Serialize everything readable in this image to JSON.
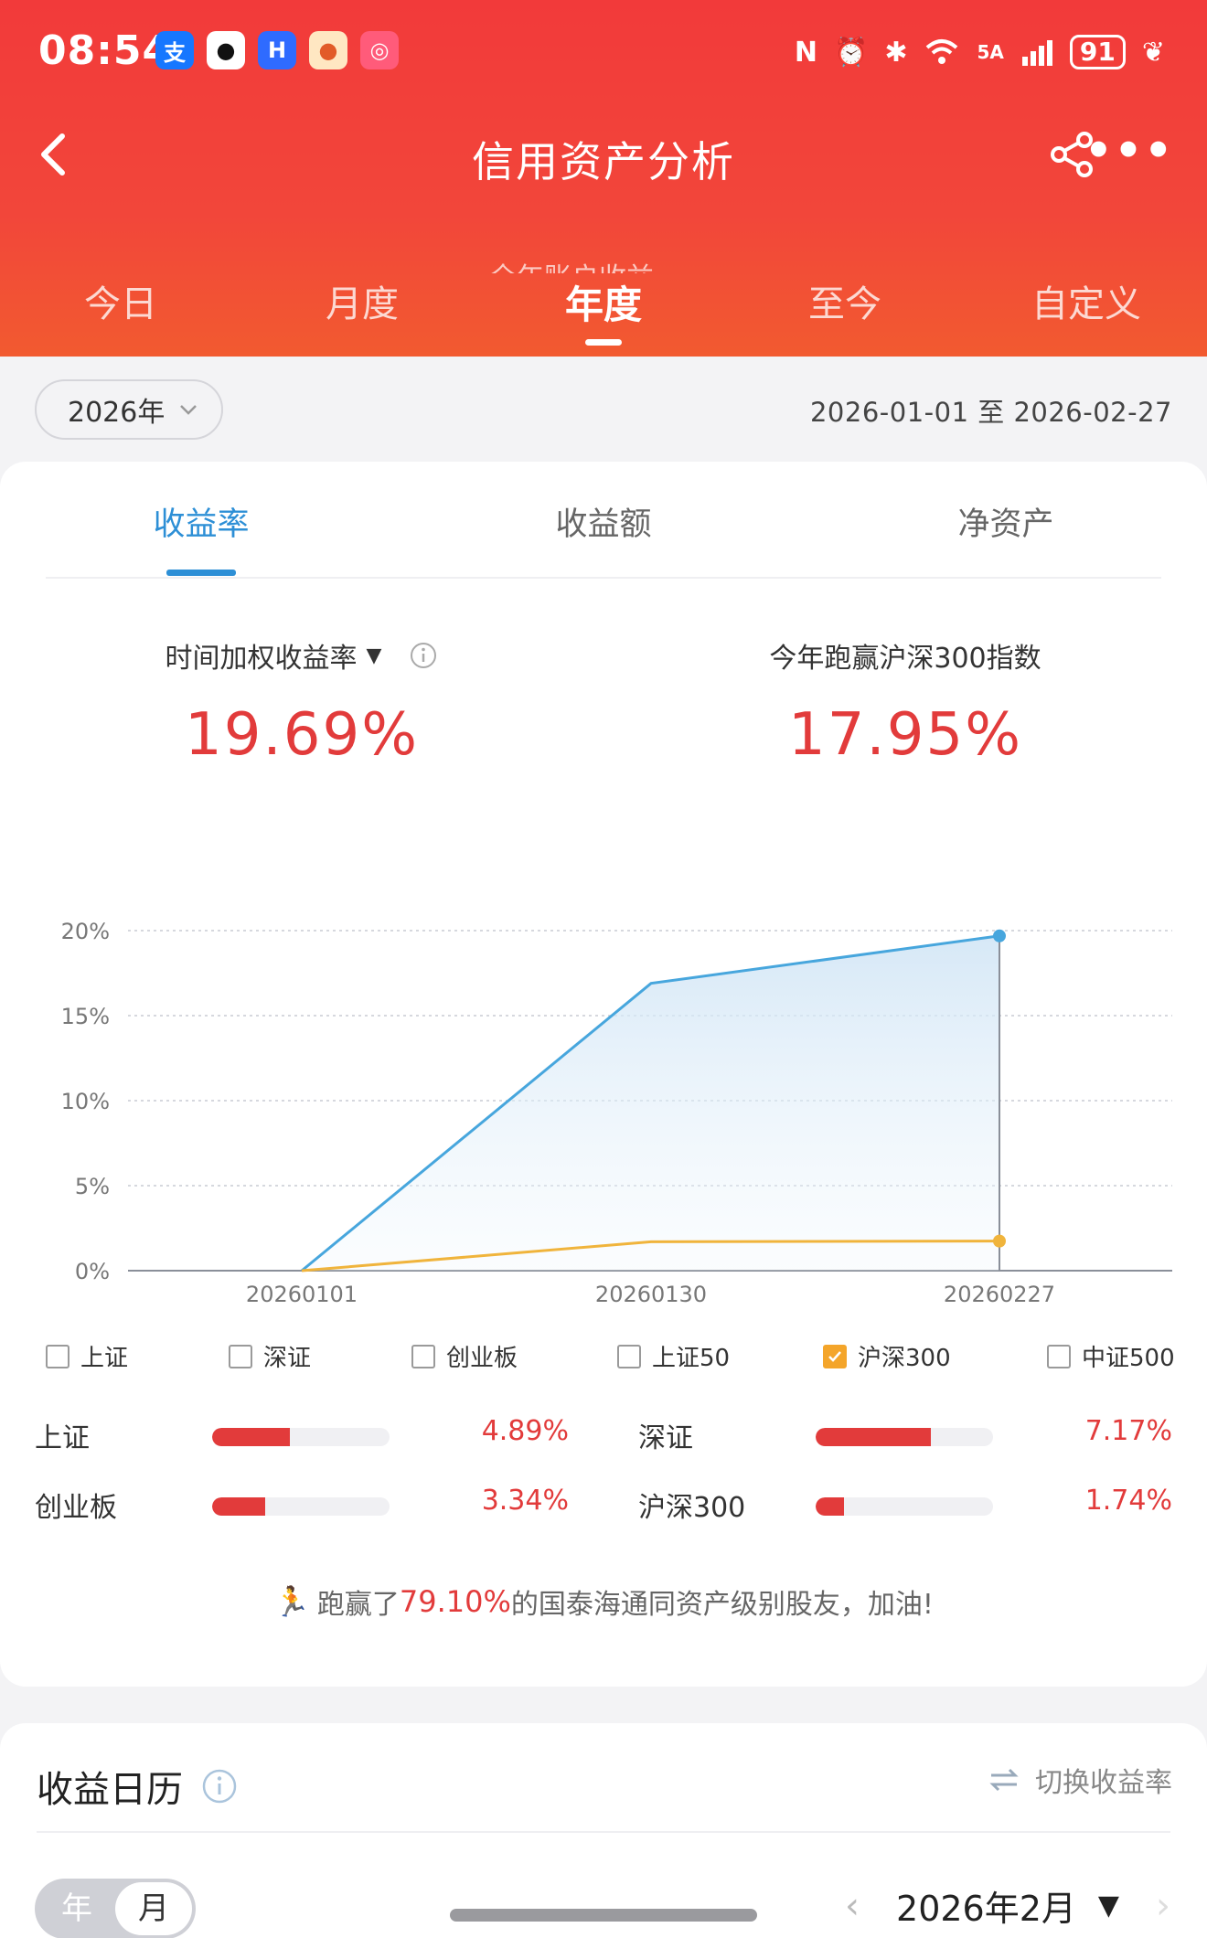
{
  "status_bar": {
    "time": "08:54",
    "battery": "91",
    "network": "5A",
    "icons": [
      "alipay-icon",
      "qq-icon",
      "hbuilder-icon",
      "dog-app-icon",
      "mall-app-icon"
    ]
  },
  "nav": {
    "title": "信用资产分析",
    "peek_text": "全年账户收益"
  },
  "period_tabs": [
    "今日",
    "月度",
    "年度",
    "至今",
    "自定义"
  ],
  "period_active": 2,
  "year_selector": {
    "label": "2026年"
  },
  "date_range": "2026-01-01 至 2026-02-27",
  "metric_tabs": [
    "收益率",
    "收益额",
    "净资产"
  ],
  "metric_active": 0,
  "kpis": {
    "left_label": "时间加权收益率",
    "left_value": "19.69%",
    "right_label": "今年跑赢沪深300指数",
    "right_value": "17.95%"
  },
  "chart_data": {
    "type": "line",
    "x": [
      "20260101",
      "20260130",
      "20260227"
    ],
    "y_ticks": [
      "20%",
      "15%",
      "10%",
      "5%",
      "0%"
    ],
    "ylim": [
      0,
      20
    ],
    "series": [
      {
        "values": [
          0,
          16.9,
          19.69
        ],
        "color": "#47a6dd",
        "fill": true
      },
      {
        "values": [
          0,
          1.7,
          1.74
        ],
        "color": "#f0b43c",
        "fill": false
      }
    ]
  },
  "legend": [
    {
      "label": "上证",
      "checked": false
    },
    {
      "label": "深证",
      "checked": false
    },
    {
      "label": "创业板",
      "checked": false
    },
    {
      "label": "上证50",
      "checked": false
    },
    {
      "label": "沪深300",
      "checked": true
    },
    {
      "label": "中证500",
      "checked": false
    }
  ],
  "index_stats": [
    {
      "name": "上证",
      "value": "4.89%",
      "fraction": 0.44
    },
    {
      "name": "深证",
      "value": "7.17%",
      "fraction": 0.65
    },
    {
      "name": "创业板",
      "value": "3.34%",
      "fraction": 0.3
    },
    {
      "name": "沪深300",
      "value": "1.74%",
      "fraction": 0.16
    }
  ],
  "beat": {
    "prefix": "跑赢了",
    "pct": "79.10%",
    "suffix": "的国泰海通同资产级别股友，加油!"
  },
  "calendar": {
    "title": "收益日历",
    "switch_label": "切换收益率",
    "toggle": [
      "年",
      "月"
    ],
    "toggle_selected": 1,
    "month_label": "2026年2月"
  },
  "colors": {
    "brand_red": "#f23a3a",
    "accent_blue": "#2d8fd6",
    "gain_red": "#e23b3b",
    "benchmark_orange": "#f0b43c"
  }
}
